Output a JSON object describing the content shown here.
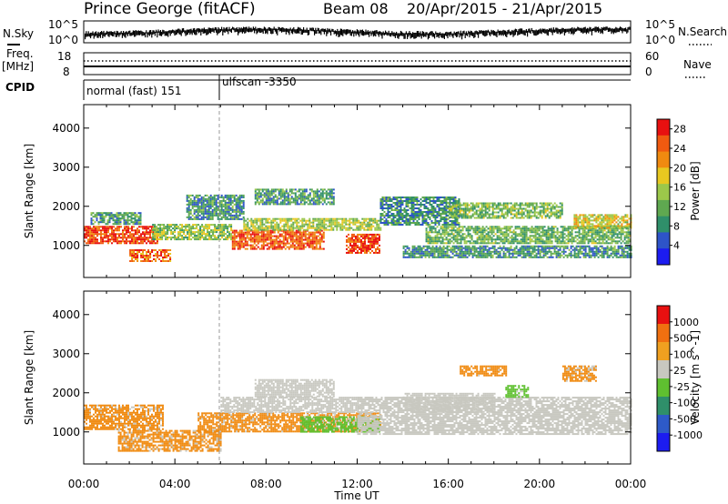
{
  "header": {
    "station": "Prince George (fitACF)",
    "beam": "Beam 08",
    "dates": "20/Apr/2015 - 21/Apr/2015"
  },
  "top_panels": {
    "nsky_label": "N.Sky",
    "nsky_tick_hi": "10^5",
    "nsky_tick_lo": "10^0",
    "nsearch_label": "N.Search",
    "nsearch_tick_hi": "10^5",
    "nsearch_tick_lo": "10^0",
    "freq_label": "Freq.",
    "freq_unit": "[MHz]",
    "freq_ticks": [
      "18",
      "8"
    ],
    "nave_label": "Nave",
    "nave_ticks": [
      "60",
      "0"
    ],
    "cpid_label": "CPID",
    "cpid_modes": [
      "normal (fast) 151",
      "ulfscan -3350"
    ]
  },
  "chart_data": [
    {
      "type": "heatmap",
      "panel": "power",
      "ylabel": "Slant Range [km]",
      "xlabel": "",
      "yticks": [
        "1000",
        "2000",
        "3000",
        "4000"
      ],
      "ylim": [
        180,
        4600
      ],
      "xlim": [
        0,
        24
      ],
      "colorbar": {
        "label": "Power [dB]",
        "ticks": [
          "4",
          "8",
          "12",
          "16",
          "20",
          "24",
          "28"
        ],
        "range": [
          0,
          30
        ],
        "colors": [
          "#1c1cf0",
          "#2e54c8",
          "#2f8f6a",
          "#5fa850",
          "#9cc84a",
          "#e8c820",
          "#f08a10",
          "#f05a10",
          "#e81010"
        ]
      },
      "bands": [
        {
          "t0": 0.0,
          "t1": 3.2,
          "r0": 1050,
          "r1": 1500,
          "v": 26
        },
        {
          "t0": 0.3,
          "t1": 2.5,
          "r0": 1550,
          "r1": 1850,
          "v": 10
        },
        {
          "t0": 2.0,
          "t1": 3.8,
          "r0": 600,
          "r1": 900,
          "v": 24
        },
        {
          "t0": 3.0,
          "t1": 6.5,
          "r0": 1150,
          "r1": 1550,
          "v": 14
        },
        {
          "t0": 4.5,
          "t1": 7.0,
          "r0": 1650,
          "r1": 2300,
          "v": 9
        },
        {
          "t0": 6.5,
          "t1": 10.5,
          "r0": 900,
          "r1": 1400,
          "v": 25
        },
        {
          "t0": 7.0,
          "t1": 13.0,
          "r0": 1400,
          "r1": 1700,
          "v": 15
        },
        {
          "t0": 7.5,
          "t1": 11.0,
          "r0": 2050,
          "r1": 2450,
          "v": 10
        },
        {
          "t0": 11.5,
          "t1": 13.0,
          "r0": 800,
          "r1": 1300,
          "v": 26
        },
        {
          "t0": 13.0,
          "t1": 16.5,
          "r0": 1550,
          "r1": 2250,
          "v": 9
        },
        {
          "t0": 14.0,
          "t1": 24.0,
          "r0": 700,
          "r1": 1000,
          "v": 9
        },
        {
          "t0": 15.0,
          "t1": 24.0,
          "r0": 1050,
          "r1": 1500,
          "v": 12
        },
        {
          "t0": 16.0,
          "t1": 21.0,
          "r0": 1700,
          "r1": 2100,
          "v": 13
        },
        {
          "t0": 21.5,
          "t1": 24.0,
          "r0": 1450,
          "r1": 1800,
          "v": 17
        }
      ]
    },
    {
      "type": "heatmap",
      "panel": "velocity",
      "ylabel": "Slant Range [km]",
      "xlabel": "Time UT",
      "xticks": [
        "00:00",
        "04:00",
        "08:00",
        "12:00",
        "16:00",
        "20:00",
        "00:00"
      ],
      "yticks": [
        "1000",
        "2000",
        "3000",
        "4000"
      ],
      "ylim": [
        180,
        4600
      ],
      "xlim": [
        0,
        24
      ],
      "colorbar": {
        "label": "Velocity [m s^-1]",
        "ticks": [
          "1000",
          "500",
          "100",
          "25",
          "-25",
          "-100",
          "-500",
          "-1000"
        ],
        "colors": [
          "#1c1cf0",
          "#2e5ac8",
          "#2f8f6a",
          "#5fc030",
          "#c8c8c0",
          "#f0a020",
          "#f07010",
          "#e81010"
        ]
      },
      "bands": [
        {
          "t0": 0.0,
          "t1": 3.5,
          "r0": 1050,
          "r1": 1700,
          "v": "orange"
        },
        {
          "t0": 1.5,
          "t1": 6.0,
          "r0": 500,
          "r1": 1050,
          "v": "orange"
        },
        {
          "t0": 5.0,
          "t1": 13.0,
          "r0": 1000,
          "r1": 1500,
          "v": "orange"
        },
        {
          "t0": 6.0,
          "t1": 12.0,
          "r0": 1500,
          "r1": 1900,
          "v": "grey"
        },
        {
          "t0": 7.5,
          "t1": 11.0,
          "r0": 1900,
          "r1": 2350,
          "v": "grey"
        },
        {
          "t0": 9.5,
          "t1": 13.0,
          "r0": 1000,
          "r1": 1400,
          "v": "green"
        },
        {
          "t0": 12.0,
          "t1": 24.0,
          "r0": 950,
          "r1": 1900,
          "v": "grey"
        },
        {
          "t0": 14.0,
          "t1": 18.0,
          "r0": 1500,
          "r1": 2000,
          "v": "grey"
        },
        {
          "t0": 16.5,
          "t1": 18.5,
          "r0": 2450,
          "r1": 2700,
          "v": "orange"
        },
        {
          "t0": 18.5,
          "t1": 19.5,
          "r0": 1900,
          "r1": 2200,
          "v": "green"
        },
        {
          "t0": 21.0,
          "t1": 22.5,
          "r0": 2300,
          "r1": 2700,
          "v": "orange"
        }
      ]
    }
  ]
}
